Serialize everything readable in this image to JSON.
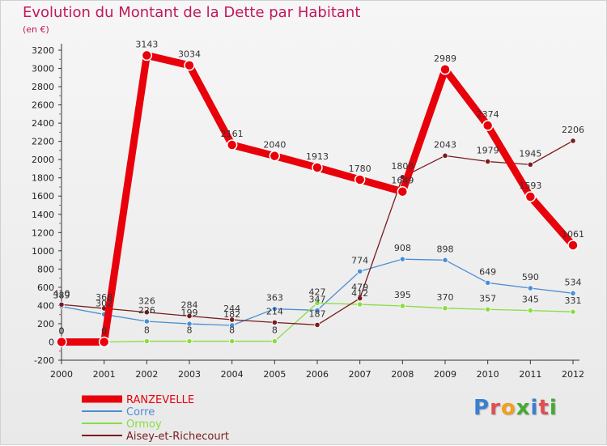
{
  "chart_data": {
    "type": "line",
    "title": "Evolution du Montant de la Dette par Habitant",
    "subtitle": "(en €)",
    "x": [
      "2000",
      "2001",
      "2002",
      "2003",
      "2004",
      "2005",
      "2006",
      "2007",
      "2008",
      "2009",
      "2010",
      "2011",
      "2012"
    ],
    "ylim": [
      -200,
      3200
    ],
    "yticks": [
      -200,
      0,
      200,
      400,
      600,
      800,
      1000,
      1200,
      1400,
      1600,
      1800,
      2000,
      2200,
      2400,
      2600,
      2800,
      3000,
      3200
    ],
    "grid": false,
    "legend_position": "bottom-left",
    "series": [
      {
        "name": "RANZEVELLE",
        "color": "#e8000b",
        "values": [
          0,
          0,
          3143,
          3034,
          2161,
          2040,
          1913,
          1780,
          1649,
          2989,
          2374,
          1593,
          1061
        ]
      },
      {
        "name": "Corre",
        "color": "#4a8fd4",
        "values": [
          389,
          302,
          226,
          199,
          182,
          363,
          347,
          774,
          908,
          898,
          649,
          590,
          534
        ]
      },
      {
        "name": "Ormoy",
        "color": "#88dd44",
        "values": [
          0,
          0,
          8,
          8,
          8,
          8,
          427,
          412,
          395,
          370,
          357,
          345,
          331
        ]
      },
      {
        "name": "Aisey-et-Richecourt",
        "color": "#7a1c1c",
        "values": [
          410,
          368,
          326,
          284,
          244,
          214,
          187,
          479,
          1808,
          2043,
          1979,
          1945,
          2206
        ]
      }
    ]
  },
  "logo": {
    "letters": [
      {
        "ch": "P",
        "color": "#3a7fd0"
      },
      {
        "ch": "r",
        "color": "#e05050"
      },
      {
        "ch": "o",
        "color": "#f0a020"
      },
      {
        "ch": "x",
        "color": "#44aa33"
      },
      {
        "ch": "i",
        "color": "#3a7fd0"
      },
      {
        "ch": "t",
        "color": "#e05050"
      },
      {
        "ch": "i",
        "color": "#44aa33"
      }
    ]
  }
}
